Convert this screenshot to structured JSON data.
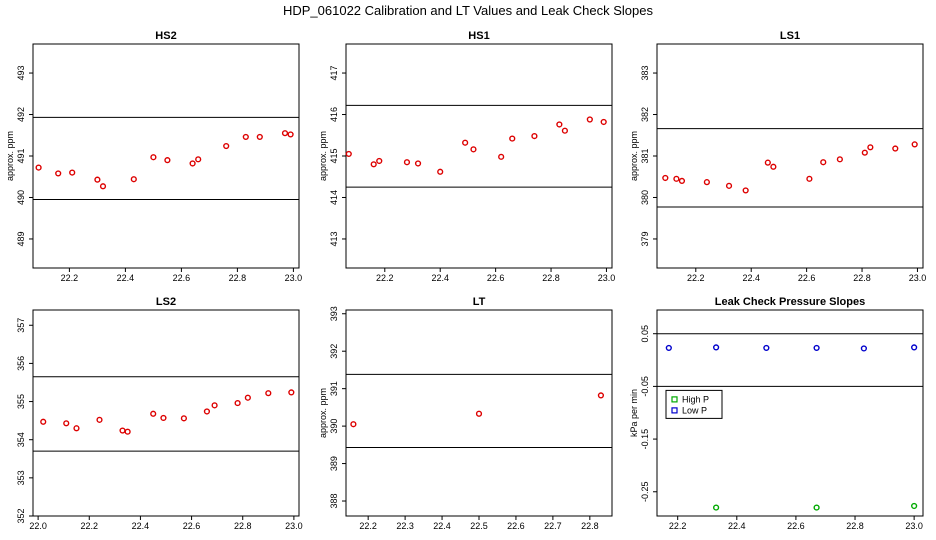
{
  "page_title": "HDP_061022  Calibration and LT Values and Leak Check Slopes",
  "chart_data": [
    {
      "type": "scatter",
      "title": "HS2",
      "ylabel": "approx. ppm",
      "xlim": [
        22.07,
        23.02
      ],
      "ylim": [
        488.3,
        493.7
      ],
      "xticks": [
        22.2,
        22.4,
        22.6,
        22.8,
        23.0
      ],
      "xtick_labels": [
        "22.2",
        "22.4",
        "22.6",
        "22.8",
        "23.0"
      ],
      "yticks": [
        489,
        490,
        491,
        492,
        493
      ],
      "ytick_labels": [
        "489",
        "490",
        "491",
        "492",
        "493"
      ],
      "hlines": [
        491.93,
        489.95
      ],
      "grid": false,
      "series": [
        {
          "color": "#dd0000",
          "marker": "circle",
          "x": [
            22.09,
            22.16,
            22.21,
            22.3,
            22.32,
            22.43,
            22.5,
            22.55,
            22.64,
            22.66,
            22.76,
            22.83,
            22.88,
            22.97,
            22.99
          ],
          "y": [
            490.72,
            490.58,
            490.6,
            490.43,
            490.27,
            490.44,
            490.97,
            490.9,
            490.82,
            490.92,
            491.24,
            491.46,
            491.46,
            491.55,
            491.52
          ]
        }
      ]
    },
    {
      "type": "scatter",
      "title": "HS1",
      "ylabel": "approx. ppm",
      "xlim": [
        22.06,
        23.02
      ],
      "ylim": [
        412.3,
        417.7
      ],
      "xticks": [
        22.2,
        22.4,
        22.6,
        22.8,
        23.0
      ],
      "xtick_labels": [
        "22.2",
        "22.4",
        "22.6",
        "22.8",
        "23.0"
      ],
      "yticks": [
        413,
        414,
        415,
        416,
        417
      ],
      "ytick_labels": [
        "413",
        "414",
        "415",
        "416",
        "417"
      ],
      "hlines": [
        416.22,
        414.25
      ],
      "grid": false,
      "series": [
        {
          "color": "#dd0000",
          "marker": "circle",
          "x": [
            22.07,
            22.16,
            22.18,
            22.28,
            22.32,
            22.4,
            22.49,
            22.52,
            22.62,
            22.66,
            22.74,
            22.83,
            22.85,
            22.94,
            22.99
          ],
          "y": [
            415.05,
            414.8,
            414.88,
            414.85,
            414.82,
            414.62,
            415.32,
            415.16,
            414.98,
            415.42,
            415.48,
            415.76,
            415.61,
            415.88,
            415.82
          ]
        }
      ]
    },
    {
      "type": "scatter",
      "title": "LS1",
      "ylabel": "approx. ppm",
      "xlim": [
        22.06,
        23.02
      ],
      "ylim": [
        378.3,
        383.7
      ],
      "xticks": [
        22.2,
        22.4,
        22.6,
        22.8,
        23.0
      ],
      "xtick_labels": [
        "22.2",
        "22.4",
        "22.6",
        "22.8",
        "23.0"
      ],
      "yticks": [
        379,
        380,
        381,
        382,
        383
      ],
      "ytick_labels": [
        "379",
        "380",
        "381",
        "382",
        "383"
      ],
      "hlines": [
        381.66,
        379.77
      ],
      "grid": false,
      "series": [
        {
          "color": "#dd0000",
          "marker": "circle",
          "x": [
            22.09,
            22.13,
            22.15,
            22.24,
            22.32,
            22.38,
            22.46,
            22.48,
            22.61,
            22.66,
            22.72,
            22.81,
            22.83,
            22.92,
            22.99
          ],
          "y": [
            380.47,
            380.45,
            380.4,
            380.37,
            380.28,
            380.17,
            380.84,
            380.74,
            380.45,
            380.85,
            380.92,
            381.08,
            381.21,
            381.18,
            381.28
          ]
        }
      ]
    },
    {
      "type": "scatter",
      "title": "LS2",
      "ylabel": "",
      "xlim": [
        21.98,
        23.02
      ],
      "ylim": [
        352.0,
        357.4
      ],
      "xticks": [
        22.0,
        22.2,
        22.4,
        22.6,
        22.8,
        23.0
      ],
      "xtick_labels": [
        "22.0",
        "22.2",
        "22.4",
        "22.6",
        "22.8",
        "23.0"
      ],
      "yticks": [
        352,
        353,
        354,
        355,
        356,
        357
      ],
      "ytick_labels": [
        "352",
        "353",
        "354",
        "355",
        "356",
        "357"
      ],
      "hlines": [
        355.65,
        353.7
      ],
      "grid": false,
      "series": [
        {
          "color": "#dd0000",
          "marker": "circle",
          "x": [
            22.02,
            22.11,
            22.15,
            22.24,
            22.33,
            22.35,
            22.45,
            22.49,
            22.57,
            22.66,
            22.69,
            22.78,
            22.82,
            22.9,
            22.99
          ],
          "y": [
            354.47,
            354.43,
            354.3,
            354.52,
            354.24,
            354.21,
            354.68,
            354.57,
            354.56,
            354.74,
            354.9,
            354.96,
            355.1,
            355.22,
            355.24
          ]
        }
      ]
    },
    {
      "type": "scatter",
      "title": "LT",
      "ylabel": "approx. ppm",
      "xlim": [
        22.14,
        22.86
      ],
      "ylim": [
        387.6,
        393.1
      ],
      "xticks": [
        22.2,
        22.3,
        22.4,
        22.5,
        22.6,
        22.7,
        22.8
      ],
      "xtick_labels": [
        "22.2",
        "22.3",
        "22.4",
        "22.5",
        "22.6",
        "22.7",
        "22.8"
      ],
      "yticks": [
        388,
        389,
        390,
        391,
        392,
        393
      ],
      "ytick_labels": [
        "388",
        "389",
        "390",
        "391",
        "392",
        "393"
      ],
      "hlines": [
        391.38,
        389.43
      ],
      "grid": false,
      "series": [
        {
          "color": "#dd0000",
          "marker": "circle",
          "x": [
            22.16,
            22.5,
            22.83
          ],
          "y": [
            390.05,
            390.33,
            390.82
          ]
        }
      ]
    },
    {
      "type": "scatter",
      "title": "Leak Check Pressure Slopes",
      "ylabel": "kPa per min",
      "xlim": [
        22.13,
        23.03
      ],
      "ylim": [
        -0.296,
        0.095
      ],
      "xticks": [
        22.2,
        22.4,
        22.6,
        22.8,
        23.0
      ],
      "xtick_labels": [
        "22.2",
        "22.4",
        "22.6",
        "22.8",
        "23.0"
      ],
      "yticks": [
        -0.25,
        -0.15,
        -0.05,
        0.05
      ],
      "ytick_labels": [
        "-0.25",
        "-0.15",
        "-0.05",
        "0.05"
      ],
      "hlines": [
        0.05,
        -0.05
      ],
      "grid": false,
      "legend": {
        "placement": "center-left",
        "entries": [
          "High P",
          "Low P"
        ]
      },
      "series": [
        {
          "name": "High P",
          "color": "#00aa00",
          "marker": "circle",
          "x": [
            22.33,
            22.67,
            23.0
          ],
          "y": [
            -0.28,
            -0.28,
            -0.277
          ]
        },
        {
          "name": "Low P",
          "color": "#0000cc",
          "marker": "circle",
          "x": [
            22.17,
            22.33,
            22.5,
            22.67,
            22.83,
            23.0
          ],
          "y": [
            0.023,
            0.024,
            0.023,
            0.023,
            0.022,
            0.024
          ]
        }
      ]
    }
  ]
}
